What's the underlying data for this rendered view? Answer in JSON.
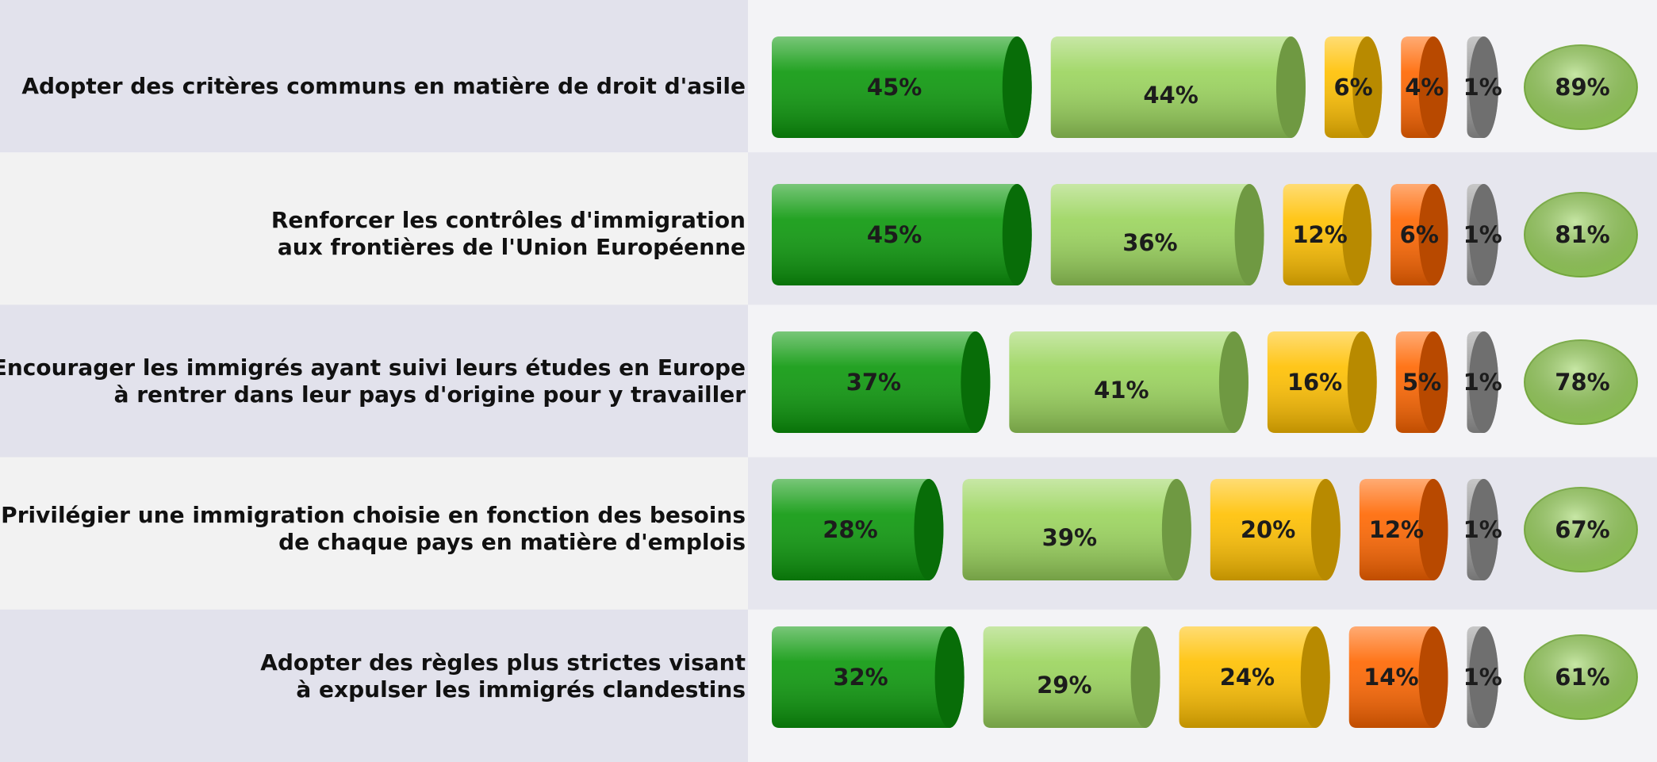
{
  "chart_data": {
    "type": "cylinder-bar",
    "categories": [
      "Adopter des critères communs en matière de droit d'asile",
      "Renforcer les contrôles d'immigration\naux frontières de l'Union Européenne",
      "Encourager les immigrés ayant suivi leurs études en Europe\nà rentrer dans leur pays d'origine pour y travailler",
      "Privilégier une immigration choisie en fonction des besoins\nde chaque pays en matière d'emplois",
      "Adopter des règles plus strictes visant\nà expulser les immigrés clandestins"
    ],
    "series": [
      {
        "color": "#0b980b",
        "values": [
          45,
          45,
          37,
          28,
          32
        ],
        "value_labels": [
          "45%",
          "45%",
          "37%",
          "28%",
          "32%"
        ]
      },
      {
        "color": "#9ad45c",
        "values": [
          44,
          36,
          41,
          39,
          29
        ],
        "value_labels": [
          "44%",
          "36%",
          "41%",
          "39%",
          "29%"
        ]
      },
      {
        "color": "#ffc000",
        "values": [
          6,
          12,
          16,
          20,
          24
        ],
        "value_labels": [
          "6%",
          "12%",
          "16%",
          "20%",
          "24%"
        ]
      },
      {
        "color": "#ff6600",
        "values": [
          4,
          6,
          5,
          12,
          14
        ],
        "value_labels": [
          "4%",
          "6%",
          "5%",
          "12%",
          "14%"
        ]
      },
      {
        "color": "#9a9a9a",
        "values": [
          1,
          1,
          1,
          1,
          1
        ],
        "value_labels": [
          "1%",
          "1%",
          "1%",
          "1%",
          "1%"
        ]
      }
    ],
    "totals": {
      "color": "#9ad45c",
      "values": [
        89,
        81,
        78,
        67,
        61
      ],
      "value_labels": [
        "89%",
        "81%",
        "78%",
        "67%",
        "61%"
      ]
    }
  }
}
